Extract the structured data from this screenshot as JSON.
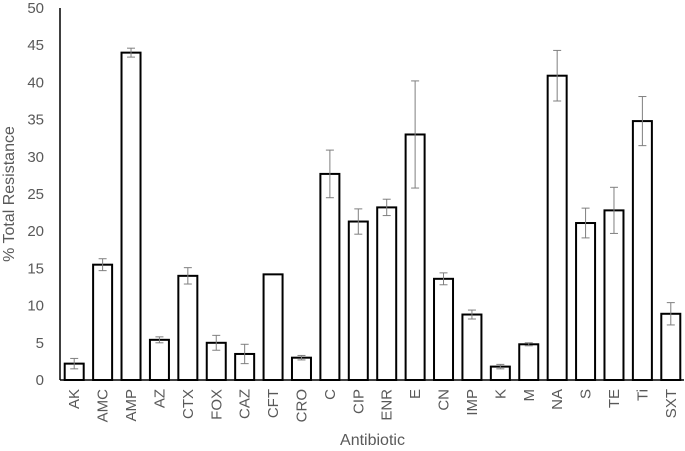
{
  "chart_data": {
    "type": "bar",
    "title": "",
    "xlabel": "Antibiotic",
    "ylabel": "% Total Resistance",
    "ylim": [
      0,
      50
    ],
    "yticks": [
      0,
      5,
      10,
      15,
      20,
      25,
      30,
      35,
      40,
      45,
      50
    ],
    "grid": false,
    "legend": "none",
    "bar_fill": "#ffffff",
    "bar_stroke": "#000000",
    "axis_color": "#000000",
    "text_color": "#595959",
    "error_color": "#7f7f7f",
    "categories": [
      "AK",
      "AMC",
      "AMP",
      "AZ",
      "CTX",
      "FOX",
      "CAZ",
      "CFT",
      "CRO",
      "C",
      "CIP",
      "ENR",
      "E",
      "CN",
      "IMP",
      "K",
      "M",
      "NA",
      "S",
      "TE",
      "Ti",
      "SXT"
    ],
    "values": [
      2.2,
      15.5,
      44.0,
      5.4,
      14.0,
      5.0,
      3.5,
      14.2,
      3.0,
      27.7,
      21.3,
      23.2,
      33.0,
      13.6,
      8.8,
      1.8,
      4.8,
      40.9,
      21.1,
      22.8,
      34.8,
      8.9
    ],
    "errors": [
      0.7,
      0.8,
      0.6,
      0.4,
      1.1,
      1.0,
      1.3,
      0.0,
      0.3,
      3.2,
      1.7,
      1.1,
      7.2,
      0.8,
      0.6,
      0.3,
      0.2,
      3.4,
      2.0,
      3.1,
      3.3,
      1.5
    ]
  }
}
